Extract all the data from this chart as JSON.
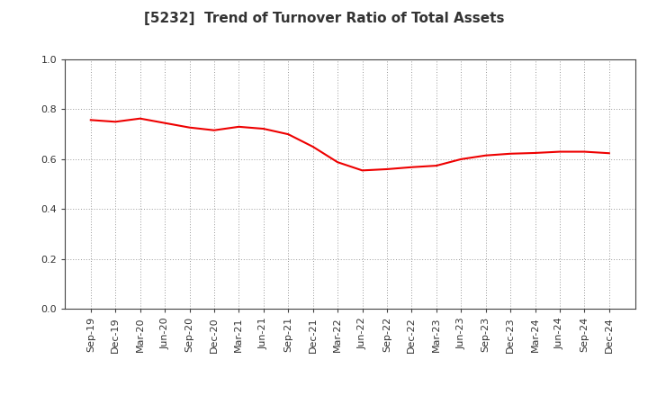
{
  "title": "[5232]  Trend of Turnover Ratio of Total Assets",
  "x_labels": [
    "Sep-19",
    "Dec-19",
    "Mar-20",
    "Jun-20",
    "Sep-20",
    "Dec-20",
    "Mar-21",
    "Jun-21",
    "Sep-21",
    "Dec-21",
    "Mar-22",
    "Jun-22",
    "Sep-22",
    "Dec-22",
    "Mar-23",
    "Jun-23",
    "Sep-23",
    "Dec-23",
    "Mar-24",
    "Jun-24",
    "Sep-24",
    "Dec-24"
  ],
  "y_values": [
    0.757,
    0.75,
    0.763,
    0.745,
    0.727,
    0.716,
    0.73,
    0.722,
    0.7,
    0.65,
    0.588,
    0.555,
    0.56,
    0.568,
    0.574,
    0.6,
    0.615,
    0.622,
    0.625,
    0.63,
    0.63,
    0.624
  ],
  "line_color": "#EE0000",
  "line_width": 1.5,
  "ylim": [
    0.0,
    1.0
  ],
  "yticks": [
    0.0,
    0.2,
    0.4,
    0.6,
    0.8,
    1.0
  ],
  "bg_color": "#FFFFFF",
  "grid_color": "#999999",
  "title_fontsize": 11,
  "tick_fontsize": 8,
  "title_color": "#333333"
}
